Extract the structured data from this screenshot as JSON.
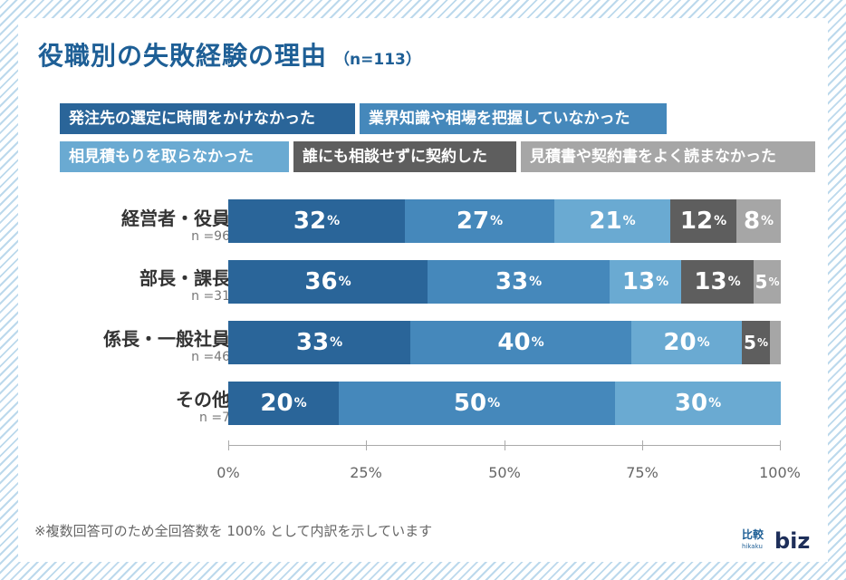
{
  "title": "役職別の失敗経験の理由",
  "title_n": "（n=113）",
  "footnote": "※複数回答可のため全回答数を 100% として内訳を示しています",
  "logo": {
    "jp": "比較",
    "sub": "hikaku",
    "biz": "biz"
  },
  "chart_data": {
    "type": "bar",
    "orientation": "horizontal-stacked-100",
    "title": "役職別の失敗経験の理由",
    "n_total": "n=113",
    "xlim": [
      0,
      100
    ],
    "xticks": [
      "0%",
      "25%",
      "50%",
      "75%",
      "100%"
    ],
    "series": [
      {
        "name": "発注先の選定に時間をかけなかった",
        "color": "#2a6599"
      },
      {
        "name": "業界知識や相場を把握していなかった",
        "color": "#4588bb"
      },
      {
        "name": "相見積もりを取らなかった",
        "color": "#6aaad2"
      },
      {
        "name": "誰にも相談せずに契約した",
        "color": "#5e5e5e"
      },
      {
        "name": "見積書や契約書をよく読まなかった",
        "color": "#a6a6a6"
      }
    ],
    "categories": [
      {
        "name": "経営者・役員",
        "n": "n =96",
        "values": [
          32,
          27,
          21,
          12,
          8
        ]
      },
      {
        "name": "部長・課長",
        "n": "n =31",
        "values": [
          36,
          33,
          13,
          13,
          5
        ]
      },
      {
        "name": "係長・一般社員",
        "n": "n =46",
        "values": [
          33,
          40,
          20,
          5,
          2
        ]
      },
      {
        "name": "その他",
        "n": "n =7",
        "values": [
          20,
          50,
          30,
          0,
          0
        ]
      }
    ],
    "labels": [
      [
        "32",
        "27",
        "21",
        "12",
        "8"
      ],
      [
        "36",
        "33",
        "13",
        "13",
        "5"
      ],
      [
        "33",
        "40",
        "20",
        "5",
        ""
      ],
      [
        "20",
        "50",
        "30",
        "",
        ""
      ]
    ],
    "pct_symbol": "%"
  }
}
